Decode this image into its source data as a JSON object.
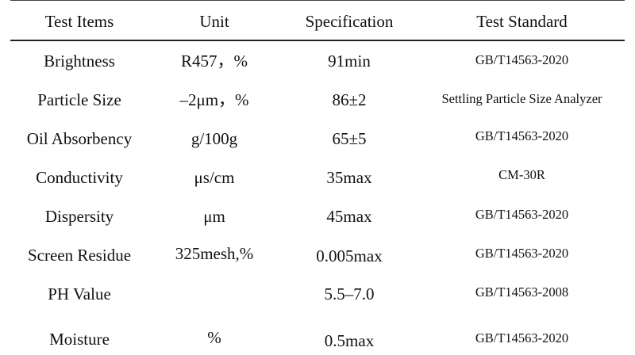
{
  "table": {
    "headers": [
      "Test Items",
      "Unit",
      "Specification",
      "Test Standard"
    ],
    "rows": [
      {
        "item": "Brightness",
        "unit": "R457，%",
        "spec": "91min",
        "standard": "GB/T14563-2020"
      },
      {
        "item": "Particle Size",
        "unit": "–2μm，%",
        "spec": "86±2",
        "standard": "Settling Particle Size Analyzer"
      },
      {
        "item": "Oil Absorbency",
        "unit": "g/100g",
        "spec": "65±5",
        "standard": "GB/T14563-2020"
      },
      {
        "item": "Conductivity",
        "unit": "μs/cm",
        "spec": "35max",
        "standard": "CM-30R"
      },
      {
        "item": "Dispersity",
        "unit": "μm",
        "spec": "45max",
        "standard": "GB/T14563-2020"
      },
      {
        "item": "Screen Residue",
        "unit": "325mesh,%",
        "spec": "0.005max",
        "standard": "GB/T14563-2020"
      },
      {
        "item": "PH Value",
        "unit": "",
        "spec": "5.5–7.0",
        "standard": "GB/T14563-2008"
      },
      {
        "item": "Moisture",
        "unit": "%",
        "spec": "0.5max",
        "standard": "GB/T14563-2020"
      }
    ]
  }
}
